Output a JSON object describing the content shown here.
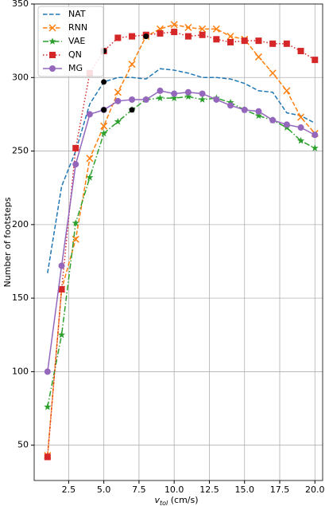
{
  "chart_data": {
    "type": "line",
    "xlabel": {
      "main": "v",
      "sub": "tol",
      "rest": " (cm/s)"
    },
    "ylabel": "Number of footsteps",
    "x": [
      1,
      2,
      3,
      4,
      5,
      6,
      7,
      8,
      9,
      10,
      11,
      12,
      13,
      14,
      15,
      16,
      17,
      18,
      19,
      20
    ],
    "series": [
      {
        "name": "NAT",
        "color": "#1f77b4",
        "dash": "dashed",
        "marker": "none",
        "values": [
          167,
          226,
          250,
          282,
          297,
          300,
          300,
          299,
          306,
          305,
          303,
          300,
          300,
          299,
          296,
          291,
          290,
          276,
          274,
          269
        ]
      },
      {
        "name": "RNN",
        "color": "#ff7f0e",
        "dash": "dashed",
        "marker": "x",
        "values": [
          43,
          156,
          190,
          245,
          267,
          290,
          309,
          328,
          333,
          336,
          334,
          333,
          333,
          328,
          326,
          314,
          303,
          291,
          273,
          262
        ]
      },
      {
        "name": "VAE",
        "color": "#2ca02c",
        "dash": "dashdot",
        "marker": "star",
        "values": [
          76,
          125,
          201,
          232,
          262,
          270,
          278,
          285,
          286,
          286,
          287,
          285,
          286,
          283,
          278,
          274,
          271,
          266,
          257,
          252
        ]
      },
      {
        "name": "QN",
        "color": "#d62728",
        "dash": "dotted",
        "marker": "square",
        "values": [
          42,
          156,
          252,
          303,
          318,
          327,
          328,
          329,
          330,
          331,
          328,
          329,
          326,
          324,
          325,
          325,
          323,
          323,
          318,
          312
        ]
      },
      {
        "name": "MG",
        "color": "#9467bd",
        "dash": "solid",
        "marker": "circle",
        "values": [
          100,
          172,
          241,
          275,
          278,
          284,
          285,
          285,
          291,
          289,
          290,
          289,
          285,
          281,
          278,
          277,
          271,
          268,
          266,
          261
        ]
      }
    ],
    "highlight_points": {
      "color": "#000000",
      "x": [
        5,
        5,
        5,
        7,
        8
      ],
      "y": [
        318,
        297,
        278,
        278,
        328
      ]
    },
    "xlim": [
      0.05,
      20.55
    ],
    "ylim": [
      26,
      350
    ],
    "xticks": [
      2.5,
      {
        "value": 5,
        "label": "5.0"
      },
      7.5,
      {
        "value": 10,
        "label": "10.0"
      },
      12.5,
      {
        "value": 15,
        "label": "15.0"
      },
      17.5,
      {
        "value": 20,
        "label": "20.0"
      }
    ],
    "yticks": [
      50,
      100,
      150,
      200,
      250,
      300,
      350
    ],
    "grid": true,
    "legend": "upper left"
  }
}
